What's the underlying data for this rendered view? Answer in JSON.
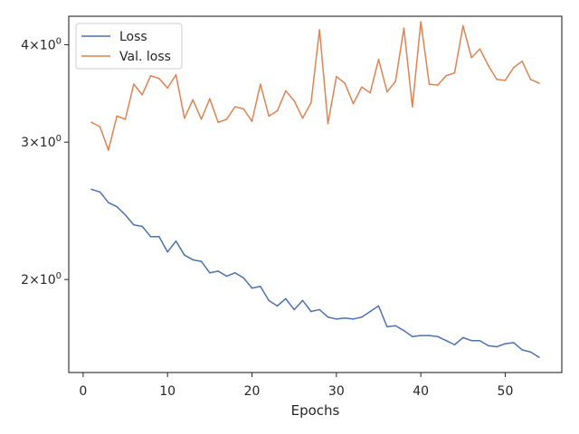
{
  "chart_data": {
    "type": "line",
    "title": "",
    "xlabel": "Epochs",
    "ylabel": "",
    "xlim": [
      -1.7,
      56.7
    ],
    "ylim": [
      1.52,
      4.35
    ],
    "yscale": "log",
    "grid": false,
    "legend_position": "top-left",
    "x_ticks": [
      {
        "value": 0,
        "label": "0"
      },
      {
        "value": 10,
        "label": "10"
      },
      {
        "value": 20,
        "label": "20"
      },
      {
        "value": 30,
        "label": "30"
      },
      {
        "value": 40,
        "label": "40"
      },
      {
        "value": 50,
        "label": "50"
      }
    ],
    "y_ticks": [
      {
        "value": 2,
        "base": "2",
        "exp": "0"
      },
      {
        "value": 3,
        "base": "3",
        "exp": "0"
      },
      {
        "value": 4,
        "base": "4",
        "exp": "0"
      }
    ],
    "x": [
      1,
      2,
      3,
      4,
      5,
      6,
      7,
      8,
      9,
      10,
      11,
      12,
      13,
      14,
      15,
      16,
      17,
      18,
      19,
      20,
      21,
      22,
      23,
      24,
      25,
      26,
      27,
      28,
      29,
      30,
      31,
      32,
      33,
      34,
      35,
      36,
      37,
      38,
      39,
      40,
      41,
      42,
      43,
      44,
      45,
      46,
      47,
      48,
      49,
      50,
      51,
      52,
      53,
      54
    ],
    "series": [
      {
        "name": "Loss",
        "color": "#4c72b0",
        "values": [
          2.61,
          2.59,
          2.51,
          2.48,
          2.42,
          2.35,
          2.34,
          2.27,
          2.27,
          2.17,
          2.24,
          2.15,
          2.12,
          2.11,
          2.04,
          2.05,
          2.02,
          2.04,
          2.01,
          1.95,
          1.96,
          1.88,
          1.85,
          1.89,
          1.83,
          1.88,
          1.82,
          1.83,
          1.79,
          1.78,
          1.785,
          1.78,
          1.79,
          1.82,
          1.85,
          1.74,
          1.745,
          1.72,
          1.69,
          1.695,
          1.695,
          1.69,
          1.67,
          1.65,
          1.685,
          1.67,
          1.67,
          1.645,
          1.64,
          1.655,
          1.66,
          1.625,
          1.615,
          1.59
        ]
      },
      {
        "name": "Val. loss",
        "color": "#dd8452",
        "values": [
          3.18,
          3.14,
          2.93,
          3.24,
          3.21,
          3.56,
          3.45,
          3.65,
          3.62,
          3.52,
          3.66,
          3.22,
          3.4,
          3.21,
          3.41,
          3.18,
          3.21,
          3.33,
          3.31,
          3.19,
          3.56,
          3.24,
          3.29,
          3.49,
          3.39,
          3.22,
          3.37,
          4.18,
          3.17,
          3.64,
          3.57,
          3.36,
          3.53,
          3.47,
          3.83,
          3.48,
          3.59,
          4.2,
          3.33,
          4.28,
          3.56,
          3.55,
          3.65,
          3.68,
          4.23,
          3.85,
          3.95,
          3.76,
          3.61,
          3.6,
          3.74,
          3.81,
          3.61,
          3.57
        ]
      }
    ]
  }
}
